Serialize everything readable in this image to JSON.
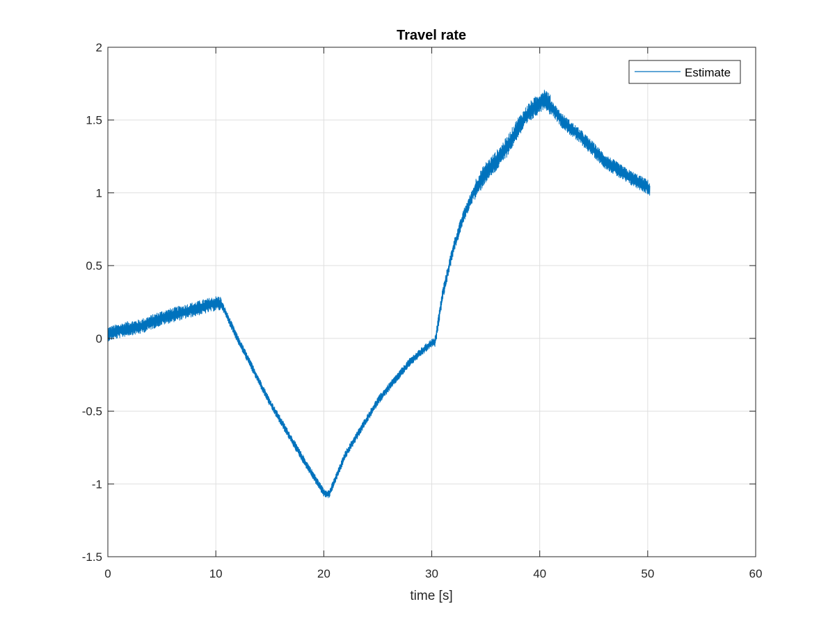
{
  "chart_data": {
    "type": "line",
    "title": "Travel rate",
    "xlabel": "time [s]",
    "ylabel": "",
    "xlim": [
      0,
      60
    ],
    "ylim": [
      -1.5,
      2
    ],
    "xticks": [
      0,
      10,
      20,
      30,
      40,
      50,
      60
    ],
    "yticks": [
      -1.5,
      -1,
      -0.5,
      0,
      0.5,
      1,
      1.5,
      2
    ],
    "xtick_labels": [
      "0",
      "10",
      "20",
      "30",
      "40",
      "50",
      "60"
    ],
    "ytick_labels": [
      "-1.5",
      "-1",
      "-0.5",
      "0",
      "0.5",
      "1",
      "1.5",
      "2"
    ],
    "grid": true,
    "legend_position": "top-right",
    "series": [
      {
        "name": "Estimate",
        "color": "#0072BD",
        "x": [
          0,
          2,
          3,
          5,
          8,
          10,
          10.5,
          12,
          15,
          18,
          20,
          20.5,
          22,
          25,
          28,
          30,
          30.3,
          31,
          32,
          33,
          34,
          35,
          36,
          37,
          38,
          39,
          40,
          40.5,
          42,
          44,
          46,
          48,
          50,
          50.2
        ],
        "y": [
          0.03,
          0.07,
          0.08,
          0.14,
          0.2,
          0.24,
          0.24,
          0.0,
          -0.44,
          -0.82,
          -1.06,
          -1.07,
          -0.8,
          -0.43,
          -0.16,
          -0.03,
          -0.03,
          0.3,
          0.62,
          0.85,
          1.02,
          1.14,
          1.22,
          1.32,
          1.45,
          1.55,
          1.62,
          1.65,
          1.5,
          1.37,
          1.22,
          1.12,
          1.04,
          1.02
        ]
      }
    ]
  }
}
